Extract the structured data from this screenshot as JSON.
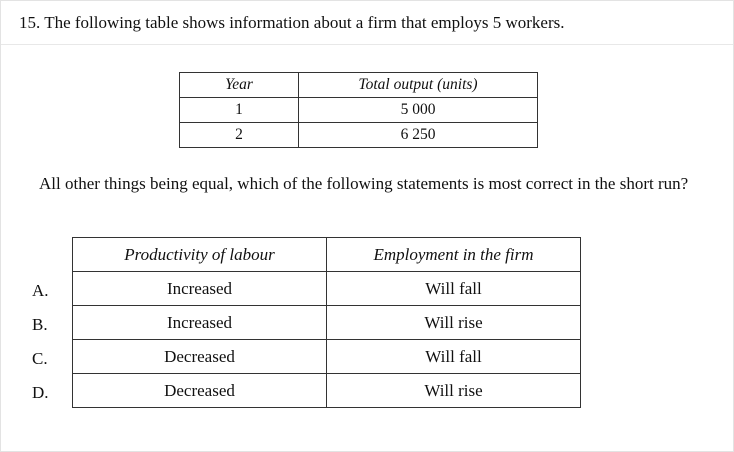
{
  "question": {
    "header": "15. The following table shows information about a firm that employs 5 workers.",
    "stem": "All other things being equal, which of the following statements is most correct in the short run?"
  },
  "data_table": {
    "headers": [
      "Year",
      "Total output (units)"
    ],
    "rows": [
      [
        "1",
        "5 000"
      ],
      [
        "2",
        "6 250"
      ]
    ]
  },
  "options_table": {
    "headers": [
      "Productivity of labour",
      "Employment in the firm"
    ],
    "rows": [
      {
        "letter": "A.",
        "productivity": "Increased",
        "employment": "Will fall"
      },
      {
        "letter": "B.",
        "productivity": "Increased",
        "employment": "Will rise"
      },
      {
        "letter": "C.",
        "productivity": "Decreased",
        "employment": "Will fall"
      },
      {
        "letter": "D.",
        "productivity": "Decreased",
        "employment": "Will rise"
      }
    ]
  }
}
